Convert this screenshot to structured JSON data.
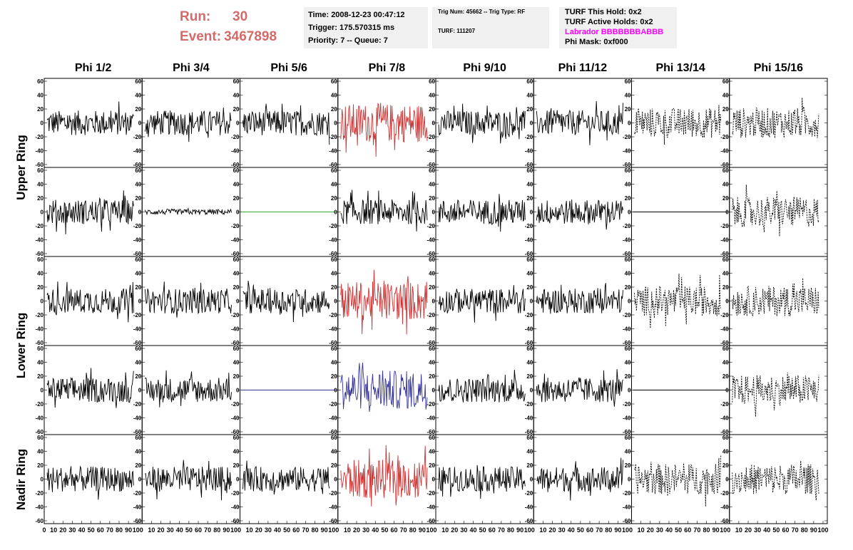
{
  "header": {
    "run_label": "Run:",
    "run_value": "30",
    "event_label": "Event:",
    "event_value": "3467898"
  },
  "info_box": {
    "time": "Time: 2008-12-23 00:47:12",
    "trigger": "Trigger: 175.570315 ms",
    "priority": "Priority: 7 -- Queue: 7"
  },
  "trig_box": {
    "trig": "Trig Num: 45662 -- Trig Type: RF",
    "turf": "TURF: 111207"
  },
  "turf_box": {
    "this_hold": "TURF This Hold: 0x2",
    "active_holds": "TURF Active Holds: 0x2",
    "labrador": "Labrador BBBBBBBABBB",
    "phi_mask": "Phi Mask: 0xf000"
  },
  "columns": [
    "Phi 1/2",
    "Phi 3/4",
    "Phi 5/6",
    "Phi 7/8",
    "Phi 9/10",
    "Phi 11/12",
    "Phi 13/14",
    "Phi 15/16"
  ],
  "ring_labels": [
    "Upper Ring",
    "Lower Ring",
    "Nadir Ring"
  ],
  "colors": {
    "accent_red": "#d46a6a",
    "trace_red": "#cc3333",
    "trace_blue": "#333399",
    "trace_green": "#33aa33",
    "labrador": "#ff00ff"
  },
  "y_ticks": [
    "60",
    "40",
    "20",
    "0",
    "-20",
    "-40",
    "-60"
  ],
  "x_ticks": [
    "0",
    "10",
    "20",
    "30",
    "40",
    "50",
    "60",
    "70",
    "80",
    "90",
    "100"
  ],
  "panels": [
    [
      "black",
      "black",
      "black",
      "red",
      "black",
      "black",
      "dashed",
      "dashed"
    ],
    [
      "black",
      "black-small",
      "green-flat",
      "black",
      "black",
      "black",
      "black-flat",
      "dashed"
    ],
    [
      "black",
      "black",
      "black",
      "red",
      "black",
      "black",
      "dashed",
      "dashed"
    ],
    [
      "black",
      "black",
      "blue-flat",
      "blue",
      "black",
      "black",
      "black-flat",
      "dashed"
    ],
    [
      "black",
      "black",
      "black",
      "red",
      "black",
      "black",
      "dashed",
      "dashed"
    ]
  ]
}
